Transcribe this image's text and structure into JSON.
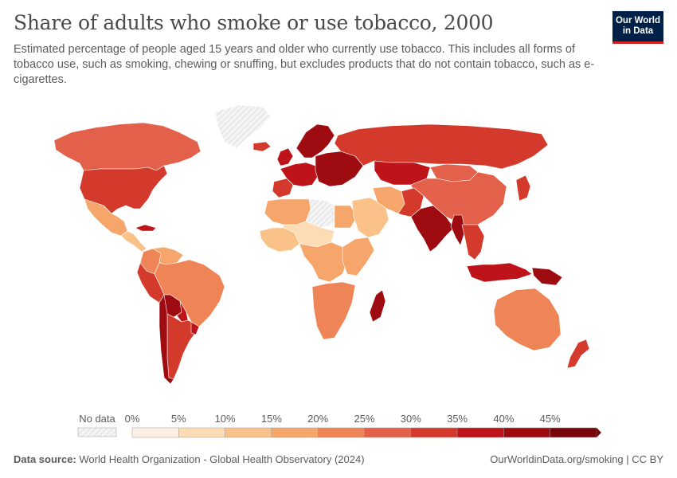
{
  "header": {
    "title": "Share of adults who smoke or use tobacco, 2000",
    "subtitle": "Estimated percentage of people aged 15 years and older who currently use tobacco. This includes all forms of tobacco use, such as smoking, chewing or snuffing, but excludes products that do not contain tobacco, such as e-cigarettes."
  },
  "logo": {
    "line1": "Our World",
    "line2": "in Data"
  },
  "legend": {
    "no_data_label": "No data",
    "ticks": [
      "0%",
      "5%",
      "10%",
      "15%",
      "20%",
      "25%",
      "30%",
      "35%",
      "40%",
      "45%"
    ],
    "colors": [
      "#fef0e4",
      "#fcdcb5",
      "#fac188",
      "#f6a66a",
      "#ef8456",
      "#e3604a",
      "#d43a2c",
      "#bd1319",
      "#9e0c12",
      "#770509"
    ]
  },
  "footer": {
    "source_label": "Data source:",
    "source_text": "World Health Organization - Global Health Observatory (2024)",
    "link": "OurWorldinData.org/smoking | CC BY"
  },
  "map_regions": [
    {
      "name": "Canada",
      "bin": 5
    },
    {
      "name": "United States",
      "bin": 6
    },
    {
      "name": "Mexico",
      "bin": 3
    },
    {
      "name": "Central America",
      "bin": 2
    },
    {
      "name": "Cuba",
      "bin": 7
    },
    {
      "name": "Colombia",
      "bin": 4
    },
    {
      "name": "Venezuela",
      "bin": 3
    },
    {
      "name": "Peru",
      "bin": 6
    },
    {
      "name": "Brazil",
      "bin": 4
    },
    {
      "name": "Bolivia",
      "bin": 8
    },
    {
      "name": "Paraguay",
      "bin": 7
    },
    {
      "name": "Argentina",
      "bin": 6
    },
    {
      "name": "Chile",
      "bin": 8
    },
    {
      "name": "Uruguay",
      "bin": 7
    },
    {
      "name": "Greenland",
      "bin": -1
    },
    {
      "name": "Iceland",
      "bin": 6
    },
    {
      "name": "United Kingdom",
      "bin": 7
    },
    {
      "name": "Western Europe",
      "bin": 7
    },
    {
      "name": "Scandinavia",
      "bin": 8
    },
    {
      "name": "Eastern Europe",
      "bin": 8
    },
    {
      "name": "Spain and Portugal",
      "bin": 6
    },
    {
      "name": "Russia",
      "bin": 6
    },
    {
      "name": "Kazakhstan",
      "bin": 7
    },
    {
      "name": "Mongolia",
      "bin": 5
    },
    {
      "name": "China",
      "bin": 5
    },
    {
      "name": "Japan",
      "bin": 6
    },
    {
      "name": "North Africa",
      "bin": 3
    },
    {
      "name": "Libya",
      "bin": -1
    },
    {
      "name": "Egypt",
      "bin": 3
    },
    {
      "name": "West Africa",
      "bin": 2
    },
    {
      "name": "Sahel",
      "bin": 1
    },
    {
      "name": "Central Africa",
      "bin": 3
    },
    {
      "name": "East Africa",
      "bin": 3
    },
    {
      "name": "Southern Africa",
      "bin": 4
    },
    {
      "name": "Madagascar",
      "bin": 8
    },
    {
      "name": "Saudi Arabia",
      "bin": 2
    },
    {
      "name": "Iran",
      "bin": 3
    },
    {
      "name": "Pakistan and Afghanistan",
      "bin": 6
    },
    {
      "name": "India",
      "bin": 8
    },
    {
      "name": "Myanmar",
      "bin": 8
    },
    {
      "name": "Southeast Asia",
      "bin": 6
    },
    {
      "name": "Indonesia",
      "bin": 7
    },
    {
      "name": "Papua New Guinea",
      "bin": 8
    },
    {
      "name": "Australia",
      "bin": 4
    },
    {
      "name": "New Zealand",
      "bin": 6
    }
  ]
}
